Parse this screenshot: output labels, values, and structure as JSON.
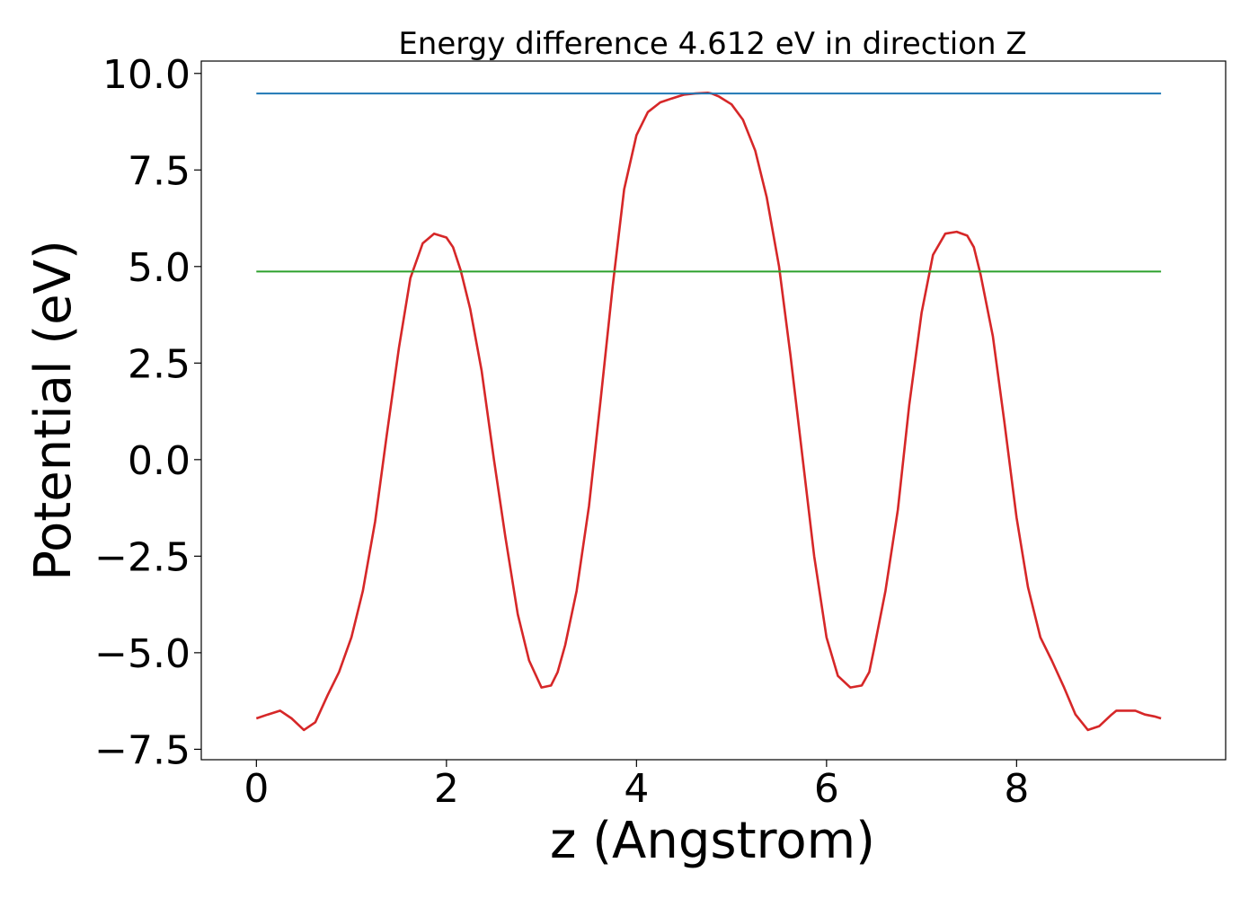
{
  "chart_data": {
    "type": "line",
    "title": "Energy difference 4.612 eV in direction Z",
    "xlabel": "z (Angstrom)",
    "ylabel": "Potential (eV)",
    "xlim": [
      -0.58,
      10.2
    ],
    "ylim": [
      -7.77,
      10.32
    ],
    "xticks": [
      0,
      2,
      4,
      6,
      8
    ],
    "xtick_labels": [
      "0",
      "2",
      "4",
      "6",
      "8"
    ],
    "yticks": [
      -7.5,
      -5.0,
      -2.5,
      0.0,
      2.5,
      5.0,
      7.5,
      10.0
    ],
    "ytick_labels": [
      "−7.5",
      "−5.0",
      "−2.5",
      "0.0",
      "2.5",
      "5.0",
      "7.5",
      "10.0"
    ],
    "grid": false,
    "series": [
      {
        "color": "#d62728",
        "x": [
          0.0,
          0.12,
          0.25,
          0.37,
          0.5,
          0.62,
          0.75,
          0.87,
          1.0,
          1.12,
          1.25,
          1.37,
          1.5,
          1.62,
          1.75,
          1.87,
          2.0,
          2.07,
          2.15,
          2.25,
          2.37,
          2.5,
          2.62,
          2.75,
          2.87,
          3.0,
          3.1,
          3.17,
          3.25,
          3.37,
          3.5,
          3.62,
          3.75,
          3.87,
          4.0,
          4.12,
          4.25,
          4.37,
          4.5,
          4.62,
          4.75,
          4.79,
          4.87,
          5.0,
          5.12,
          5.25,
          5.37,
          5.5,
          5.62,
          5.75,
          5.87,
          6.0,
          6.12,
          6.25,
          6.37,
          6.45,
          6.5,
          6.62,
          6.75,
          6.87,
          7.0,
          7.12,
          7.25,
          7.37,
          7.48,
          7.55,
          7.62,
          7.75,
          7.87,
          8.0,
          8.12,
          8.25,
          8.37,
          8.5,
          8.62,
          8.75,
          8.87,
          9.0,
          9.05,
          9.12,
          9.25,
          9.35,
          9.45,
          9.52
        ],
        "y": [
          -6.7,
          -6.6,
          -6.5,
          -6.7,
          -7.0,
          -6.8,
          -6.1,
          -5.5,
          -4.6,
          -3.4,
          -1.6,
          0.6,
          2.9,
          4.7,
          5.6,
          5.85,
          5.75,
          5.5,
          4.9,
          3.9,
          2.3,
          0.0,
          -2.0,
          -4.0,
          -5.2,
          -5.9,
          -5.85,
          -5.5,
          -4.8,
          -3.4,
          -1.2,
          1.5,
          4.5,
          7.0,
          8.4,
          9.0,
          9.25,
          9.35,
          9.45,
          9.48,
          9.5,
          9.48,
          9.4,
          9.2,
          8.8,
          8.0,
          6.8,
          5.0,
          2.7,
          0.0,
          -2.5,
          -4.6,
          -5.6,
          -5.9,
          -5.85,
          -5.5,
          -4.9,
          -3.4,
          -1.3,
          1.4,
          3.8,
          5.3,
          5.85,
          5.9,
          5.8,
          5.5,
          4.8,
          3.2,
          1.0,
          -1.5,
          -3.3,
          -4.6,
          -5.2,
          -5.9,
          -6.6,
          -7.0,
          -6.9,
          -6.6,
          -6.5,
          -6.5,
          -6.5,
          -6.6,
          -6.65,
          -6.7
        ]
      },
      {
        "color": "#1f77b4",
        "x": [
          0.0,
          9.52
        ],
        "y": [
          9.48,
          9.48
        ]
      },
      {
        "color": "#2ca02c",
        "x": [
          0.0,
          9.52
        ],
        "y": [
          4.87,
          4.87
        ]
      }
    ]
  }
}
